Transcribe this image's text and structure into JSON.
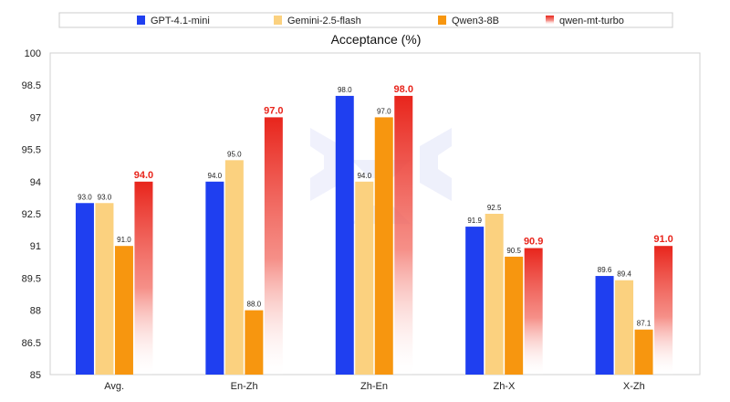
{
  "chart_data": {
    "type": "bar",
    "title": "Acceptance (%)",
    "xlabel": "",
    "ylabel": "",
    "ylim": [
      85,
      100
    ],
    "yticks": [
      85,
      86.5,
      88,
      89.5,
      91,
      92.5,
      94,
      95.5,
      97,
      98.5,
      100
    ],
    "ytick_labels": [
      "85",
      "86.5",
      "88",
      "89.5",
      "91",
      "92.5",
      "94",
      "95.5",
      "97",
      "98.5",
      "100"
    ],
    "grid": false,
    "legend_position": "top",
    "categories": [
      "Avg.",
      "En-Zh",
      "Zh-En",
      "Zh-X",
      "X-Zh"
    ],
    "series": [
      {
        "name": "GPT-4.1-mini",
        "color": "#1f3ff0",
        "values": [
          93.0,
          94.0,
          98.0,
          91.9,
          89.6
        ],
        "labels": [
          "93.0",
          "94.0",
          "98.0",
          "91.9",
          "89.6"
        ]
      },
      {
        "name": "Gemini-2.5-flash",
        "color": "#fbd17f",
        "values": [
          93.0,
          95.0,
          94.0,
          92.5,
          89.4
        ],
        "labels": [
          "93.0",
          "95.0",
          "94.0",
          "92.5",
          "89.4"
        ]
      },
      {
        "name": "Qwen3-8B",
        "color": "#f7960f",
        "values": [
          91.0,
          88.0,
          97.0,
          90.5,
          87.1
        ],
        "labels": [
          "91.0",
          "88.0",
          "97.0",
          "90.5",
          "87.1"
        ]
      },
      {
        "name": "qwen-mt-turbo",
        "color": "#e8251c",
        "gradient": true,
        "highlight": true,
        "values": [
          94.0,
          97.0,
          98.0,
          90.9,
          91.0
        ],
        "labels": [
          "94.0",
          "97.0",
          "98.0",
          "90.9",
          "91.0"
        ]
      }
    ]
  }
}
